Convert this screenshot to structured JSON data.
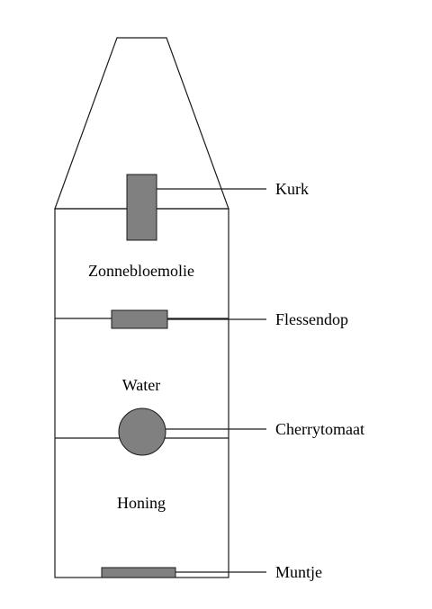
{
  "layers": [
    {
      "id": "oil",
      "label": "Zonnebloemolie"
    },
    {
      "id": "water",
      "label": "Water"
    },
    {
      "id": "honey",
      "label": "Honing"
    }
  ],
  "callouts": [
    {
      "id": "cork",
      "label": "Kurk"
    },
    {
      "id": "bottle-cap",
      "label": "Flessendop"
    },
    {
      "id": "cherry-tomato",
      "label": "Cherrytomaat"
    },
    {
      "id": "coin",
      "label": "Muntje"
    }
  ],
  "colors": {
    "object_fill": "#808080",
    "line": "#1a1a1a",
    "background": "#ffffff"
  }
}
